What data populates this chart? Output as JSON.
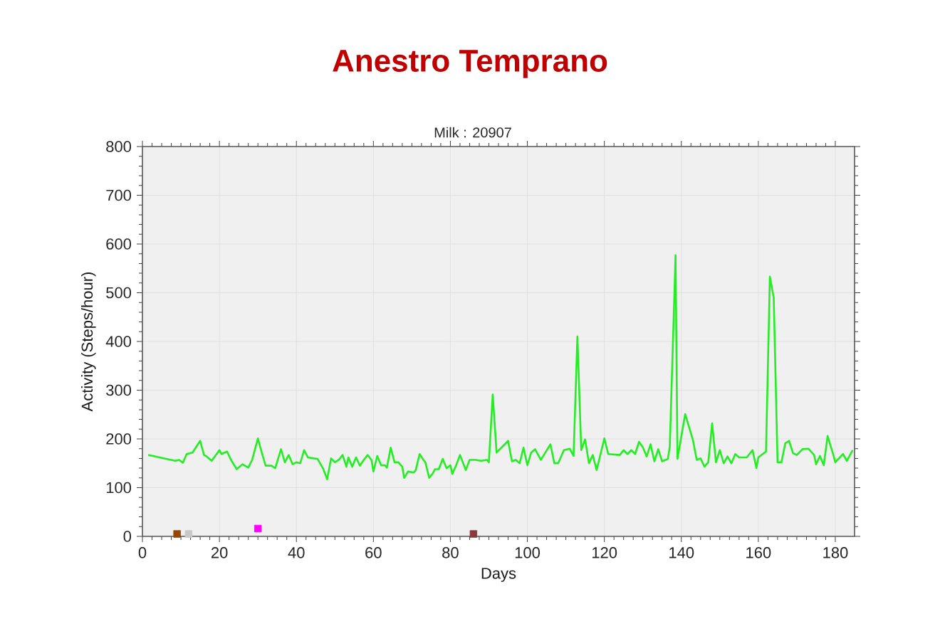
{
  "chart_data": {
    "type": "line",
    "title": "Anestro Temprano",
    "subtitle": "Milk : 20907",
    "xlabel": "Days",
    "ylabel": "Activity (Steps/hour)",
    "xlim": [
      0,
      185
    ],
    "ylim": [
      0,
      800
    ],
    "xticks": [
      0,
      20,
      40,
      60,
      80,
      100,
      120,
      140,
      160,
      180
    ],
    "yticks": [
      0,
      100,
      200,
      300,
      400,
      500,
      600,
      700,
      800
    ],
    "grid": true,
    "series": [
      {
        "color": "#22ee22",
        "line_style": "solid",
        "x": [
          1.5,
          8.5,
          9.5,
          10.5,
          11.5,
          13,
          15,
          16,
          16.5,
          18,
          20,
          20.5,
          22,
          23,
          24.5,
          26,
          27.5,
          28.5,
          30,
          31,
          32,
          33.5,
          34.5,
          36,
          37,
          38,
          39,
          40,
          41,
          42,
          43,
          44.5,
          45.5,
          47,
          48,
          49,
          50,
          51,
          52,
          53,
          53.5,
          54.5,
          55.5,
          56.5,
          57.5,
          58.5,
          59.5,
          60,
          61,
          62,
          63,
          63.5,
          64.5,
          65.5,
          66.5,
          67.5,
          68,
          69,
          70.5,
          71,
          72,
          73,
          73.5,
          74.5,
          75.5,
          76,
          77,
          78,
          79,
          80,
          80.5,
          81.5,
          82.5,
          84,
          85,
          86.5,
          88,
          89.5,
          90,
          91,
          92,
          95,
          96,
          97,
          98,
          99,
          100,
          101,
          102,
          103.5,
          106,
          107,
          108,
          109.5,
          111,
          112,
          113,
          114,
          115,
          116,
          117,
          118,
          120,
          121,
          124,
          125,
          126,
          127,
          128,
          129,
          130,
          131,
          132,
          133,
          134,
          135,
          136.5,
          137,
          138.5,
          139,
          141,
          143,
          144,
          145,
          146,
          147,
          148,
          149,
          150,
          151,
          152,
          153,
          154,
          155,
          157,
          158.5,
          159.5,
          160,
          162,
          163,
          164,
          165,
          166,
          167,
          168,
          169,
          170,
          171.5,
          173,
          174.5,
          175,
          176,
          177,
          178,
          179.5,
          180,
          182,
          183,
          184.5
        ],
        "values": [
          167,
          155,
          157,
          151,
          169,
          172,
          196,
          167,
          165,
          155,
          177,
          169,
          174,
          157,
          138,
          148,
          141,
          157,
          201,
          172,
          145,
          145,
          140,
          179,
          152,
          167,
          148,
          152,
          150,
          177,
          162,
          160,
          159,
          138,
          117,
          160,
          152,
          157,
          167,
          143,
          162,
          143,
          162,
          145,
          157,
          167,
          157,
          133,
          165,
          146,
          146,
          141,
          182,
          152,
          152,
          143,
          120,
          133,
          131,
          136,
          169,
          157,
          152,
          120,
          130,
          138,
          138,
          159,
          140,
          146,
          128,
          146,
          167,
          136,
          157,
          157,
          155,
          157,
          152,
          291,
          172,
          196,
          154,
          157,
          150,
          182,
          146,
          172,
          179,
          157,
          189,
          150,
          150,
          177,
          180,
          165,
          410,
          177,
          199,
          150,
          167,
          136,
          201,
          169,
          167,
          177,
          169,
          177,
          169,
          194,
          183,
          164,
          189,
          154,
          179,
          154,
          159,
          184,
          577,
          159,
          251,
          198,
          157,
          160,
          143,
          152,
          232,
          152,
          177,
          150,
          164,
          150,
          169,
          162,
          162,
          177,
          140,
          162,
          174,
          533,
          490,
          152,
          152,
          191,
          196,
          171,
          167,
          179,
          180,
          167,
          148,
          165,
          146,
          206,
          167,
          152,
          169,
          155,
          177
        ]
      },
      {
        "type": "scatter",
        "marker": "square",
        "x": [
          9,
          12,
          30,
          86
        ],
        "values": [
          5,
          5,
          16,
          5
        ],
        "colors": [
          "#994400",
          "#c8c8c8",
          "#ff00ff",
          "#8b3a3a"
        ]
      }
    ]
  }
}
